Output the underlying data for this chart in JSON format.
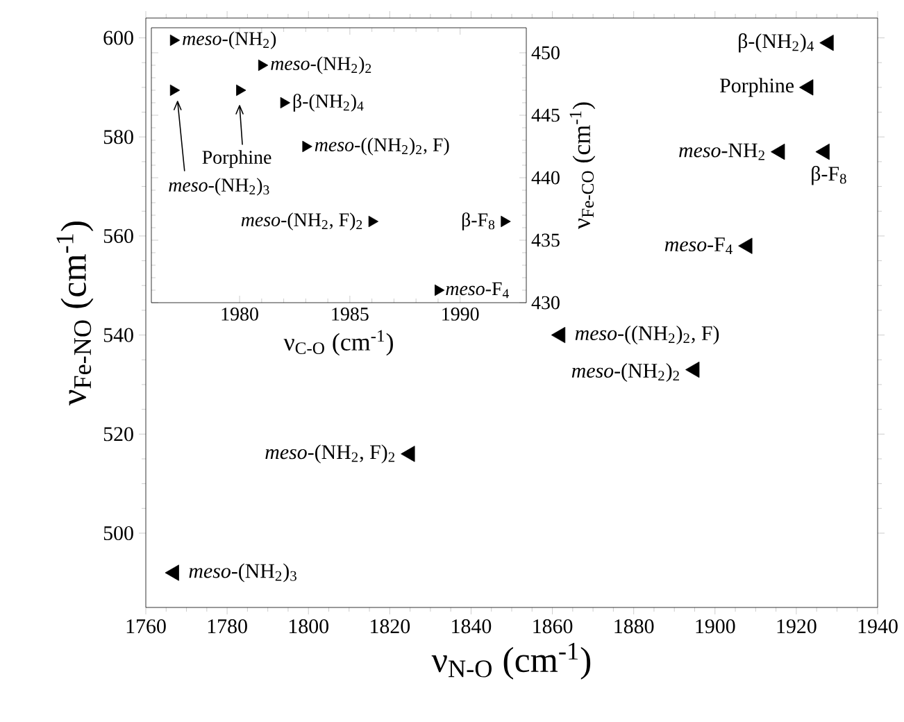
{
  "chart_data": [
    {
      "type": "scatter",
      "xlabel": "ν$_{N-O}$ (cm$^{-1}$)",
      "ylabel": "ν$_{Fe-NO}$ (cm$^{-1}$)",
      "xlim": [
        1760,
        1940
      ],
      "ylim": [
        485,
        604
      ],
      "xticks": [
        1760,
        1780,
        1800,
        1820,
        1840,
        1860,
        1880,
        1900,
        1920,
        1940
      ],
      "yticks": [
        500,
        520,
        540,
        560,
        580,
        600
      ],
      "marker": "triangle",
      "series": [
        {
          "name": "β-(NH$_{2}$)$_{4}$",
          "color": "#000000",
          "x": [
            1928
          ],
          "values": [
            599
          ]
        },
        {
          "name": "Porphine",
          "color": "#000000",
          "x": [
            1923
          ],
          "values": [
            590
          ]
        },
        {
          "name": "*meso*-NH$_{2}$",
          "color": "#000000",
          "x": [
            1916
          ],
          "values": [
            577
          ]
        },
        {
          "name": "β-F$_{8}$",
          "color": "#000000",
          "x": [
            1927
          ],
          "values": [
            577
          ]
        },
        {
          "name": "*meso*-F$_{4}$",
          "color": "#000000",
          "x": [
            1908
          ],
          "values": [
            558
          ]
        },
        {
          "name": "*meso*-((NH$_{2}$)$_{2}$, F)",
          "color": "#000000",
          "x": [
            1862
          ],
          "values": [
            540
          ]
        },
        {
          "name": "*meso*-(NH$_{2}$)$_{2}$",
          "color": "#000000",
          "x": [
            1895
          ],
          "values": [
            533
          ]
        },
        {
          "name": "*meso*-(NH$_{2}$, F)$_{2}$",
          "color": "#000000",
          "x": [
            1825
          ],
          "values": [
            516
          ]
        },
        {
          "name": "*meso*-(NH$_{2}$)$_{3}$",
          "color": "#000000",
          "x": [
            1767
          ],
          "values": [
            492
          ]
        }
      ]
    },
    {
      "type": "scatter",
      "xlabel": "ν$_{C-O}$ (cm$^{-1}$)",
      "ylabel": "ν$_{Fe-CO}$ (cm$^{-1}$)",
      "xlim": [
        1976,
        1993
      ],
      "ylim": [
        430,
        452
      ],
      "xticks": [
        1980,
        1985,
        1990
      ],
      "yticks": [
        430,
        435,
        440,
        445,
        450
      ],
      "marker": "triangle",
      "series": [
        {
          "name": "*meso*-(NH$_{2}$)",
          "color": "#000000",
          "x": [
            1977
          ],
          "values": [
            451
          ]
        },
        {
          "name": "*meso*-(NH$_{2}$)$_{2}$",
          "color": "#000000",
          "x": [
            1981
          ],
          "values": [
            449
          ]
        },
        {
          "name": "*meso*-(NH$_{2}$)$_{3}$",
          "color": "#000000",
          "x": [
            1977
          ],
          "values": [
            447
          ]
        },
        {
          "name": "Porphine",
          "color": "#000000",
          "x": [
            1980
          ],
          "values": [
            447
          ]
        },
        {
          "name": "β-(NH$_{2}$)$_{4}$",
          "color": "#000000",
          "x": [
            1982
          ],
          "values": [
            446
          ]
        },
        {
          "name": "*meso*-((NH$_{2}$)$_{2}$, F)",
          "color": "#000000",
          "x": [
            1983
          ],
          "values": [
            442.5
          ]
        },
        {
          "name": "*meso*-(NH$_{2}$, F)$_{2}$",
          "color": "#000000",
          "x": [
            1986
          ],
          "values": [
            436.5
          ]
        },
        {
          "name": "*meso*-F$_{4}$",
          "color": "#000000",
          "x": [
            1989
          ],
          "values": [
            431
          ]
        },
        {
          "name": "β-F$_{8}$",
          "color": "#000000",
          "x": [
            1992
          ],
          "values": [
            436.5
          ]
        }
      ]
    }
  ]
}
